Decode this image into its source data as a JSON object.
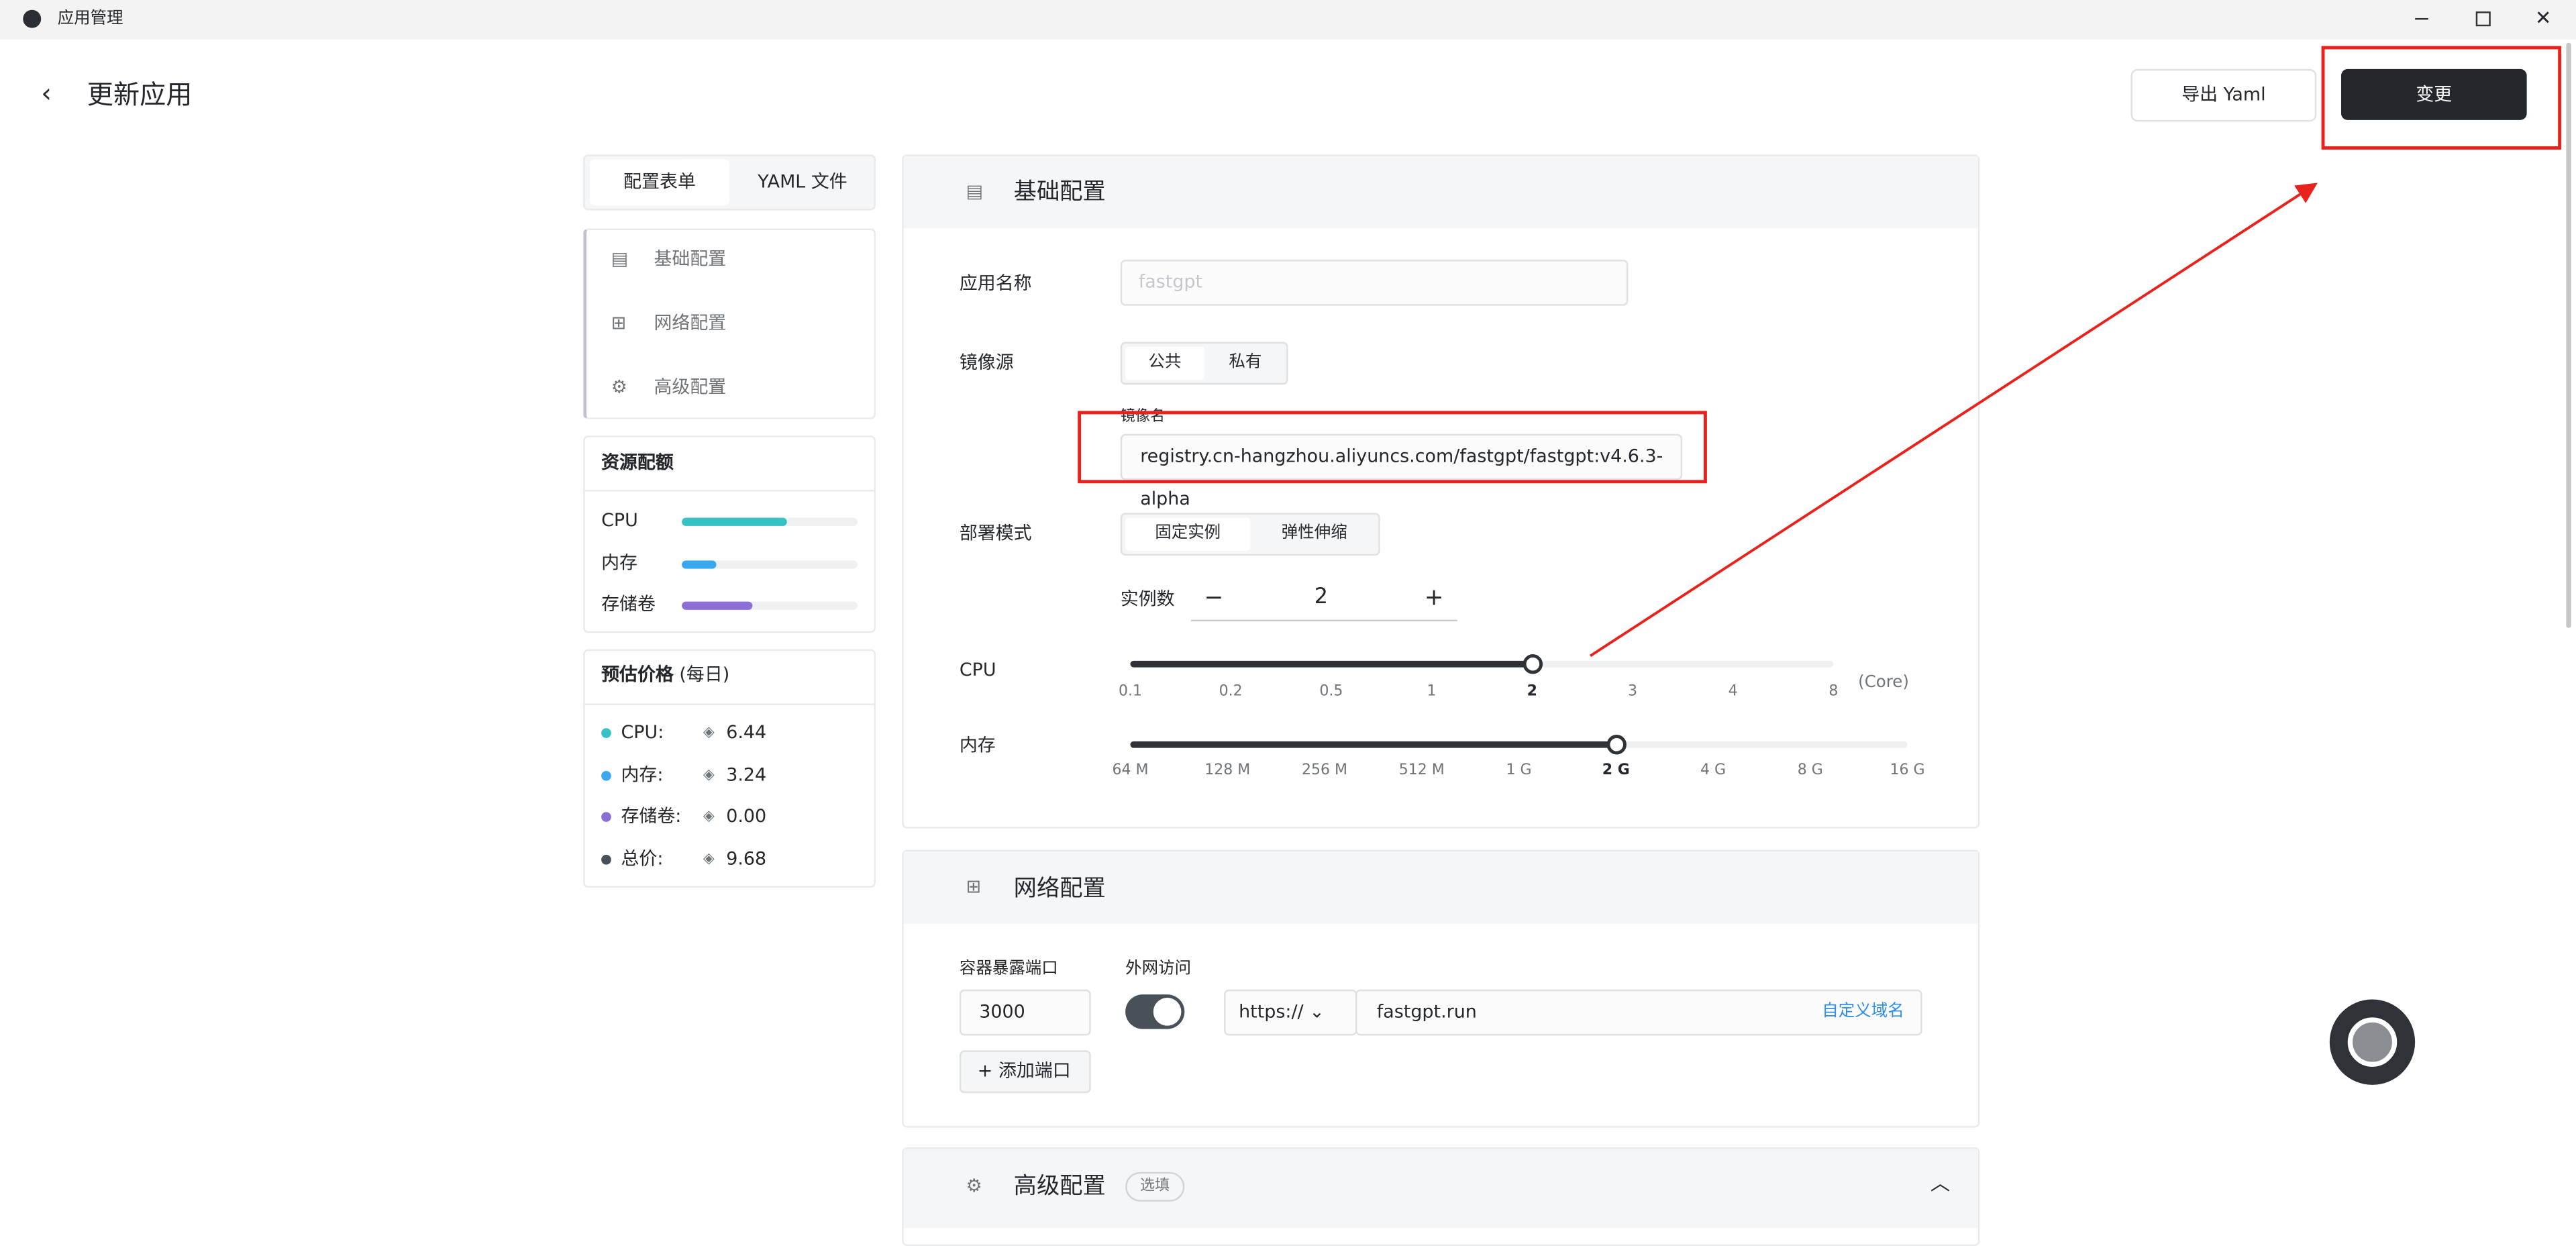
{
  "titlebar": {
    "app": "应用管理"
  },
  "header": {
    "title": "更新应用",
    "export": "导出 Yaml",
    "submit": "变更"
  },
  "tabs": [
    "配置表单",
    "YAML 文件"
  ],
  "nav": [
    "基础配置",
    "网络配置",
    "高级配置"
  ],
  "quota": {
    "title": "资源配额",
    "items": [
      {
        "label": "CPU",
        "percent": 60,
        "color": "#36c1c4"
      },
      {
        "label": "内存",
        "percent": 20,
        "color": "#3aa8ef"
      },
      {
        "label": "存储卷",
        "percent": 40,
        "color": "#8b6fd6"
      }
    ]
  },
  "price": {
    "title": "预估价格",
    "note": "(每日)",
    "items": [
      {
        "label": "CPU:",
        "value": "6.44",
        "color": "#36c1c4"
      },
      {
        "label": "内存:",
        "value": "3.24",
        "color": "#3aa8ef"
      },
      {
        "label": "存储卷:",
        "value": "0.00",
        "color": "#8b6fd6"
      },
      {
        "label": "总价:",
        "value": "9.68",
        "color": "#485058"
      }
    ]
  },
  "basic": {
    "title": "基础配置",
    "name_label": "应用名称",
    "name_placeholder": "fastgpt",
    "source_label": "镜像源",
    "source_options": [
      "公共",
      "私有"
    ],
    "image_label": "镜像名",
    "image": "registry.cn-hangzhou.aliyuncs.com/fastgpt/fastgpt:v4.6.3-alpha",
    "mode_label": "部署模式",
    "mode_options": [
      "固定实例",
      "弹性伸缩"
    ],
    "replicas_label": "实例数",
    "replicas": 2,
    "cpu": {
      "label": "CPU",
      "marks": [
        "0.1",
        "0.2",
        "0.5",
        "1",
        "2",
        "3",
        "4",
        "8"
      ],
      "selected": 4,
      "unit": "(Core)"
    },
    "memory": {
      "label": "内存",
      "marks": [
        "64 M",
        "128 M",
        "256 M",
        "512 M",
        "1 G",
        "2 G",
        "4 G",
        "8 G",
        "16 G"
      ],
      "selected": 5
    }
  },
  "network": {
    "title": "网络配置",
    "port_label": "容器暴露端口",
    "port": "3000",
    "public_label": "外网访问",
    "protocol": "https://",
    "domain": "fastgpt.run",
    "custom_domain": "自定义域名",
    "add_port": "添加端口"
  },
  "advanced": {
    "title": "高级配置",
    "badge": "选填"
  }
}
